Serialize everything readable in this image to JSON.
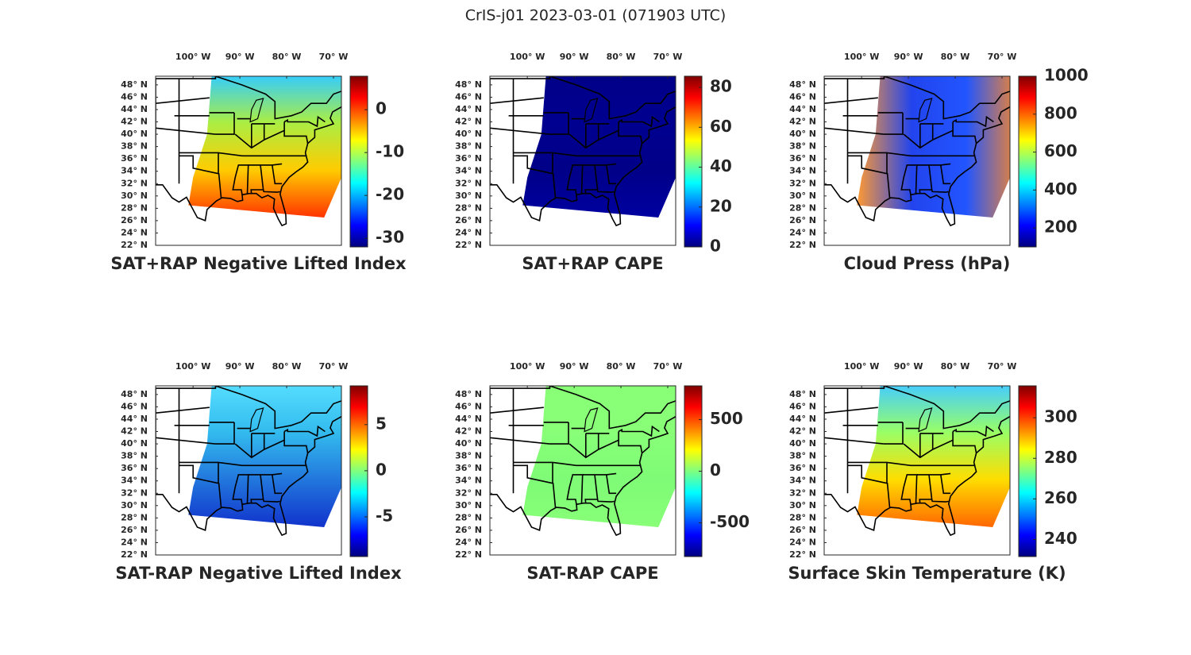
{
  "title": "CrIS-j01 2023-03-01 (071903 UTC)",
  "panels": [
    {
      "title": "SAT+RAP Negative Lifted Index",
      "xlim": [
        -108,
        -68.3
      ],
      "ylim": [
        22,
        49.4
      ],
      "lon_ticks": [
        {
          "value": -100,
          "label": "100° W"
        },
        {
          "value": -90,
          "label": "90° W"
        },
        {
          "value": -80,
          "label": "80° W"
        },
        {
          "value": -70,
          "label": "70° W"
        }
      ],
      "lat_ticks": [
        {
          "value": 22,
          "label": "22° N"
        },
        {
          "value": 24,
          "label": "24° N"
        },
        {
          "value": 26,
          "label": "26° N"
        },
        {
          "value": 28,
          "label": "28° N"
        },
        {
          "value": 30,
          "label": "30° N"
        },
        {
          "value": 32,
          "label": "32° N"
        },
        {
          "value": 34,
          "label": "34° N"
        },
        {
          "value": 36,
          "label": "36° N"
        },
        {
          "value": 38,
          "label": "38° N"
        },
        {
          "value": 40,
          "label": "40° N"
        },
        {
          "value": 42,
          "label": "42° N"
        },
        {
          "value": 44,
          "label": "44° N"
        },
        {
          "value": 46,
          "label": "46° N"
        },
        {
          "value": 48,
          "label": "48° N"
        }
      ],
      "colorbar": {
        "lim": [
          -32,
          7.8
        ],
        "ticks": [
          -30,
          -20,
          -10,
          0
        ]
      }
    },
    {
      "title": "SAT+RAP CAPE",
      "xlim": [
        -108,
        -68.3
      ],
      "ylim": [
        22,
        49.4
      ],
      "lon_ticks": [
        {
          "value": -100,
          "label": "100° W"
        },
        {
          "value": -90,
          "label": "90° W"
        },
        {
          "value": -80,
          "label": "80° W"
        },
        {
          "value": -70,
          "label": "70° W"
        }
      ],
      "lat_ticks": [
        {
          "value": 22,
          "label": "22° N"
        },
        {
          "value": 24,
          "label": "24° N"
        },
        {
          "value": 26,
          "label": "26° N"
        },
        {
          "value": 28,
          "label": "28° N"
        },
        {
          "value": 30,
          "label": "30° N"
        },
        {
          "value": 32,
          "label": "32° N"
        },
        {
          "value": 34,
          "label": "34° N"
        },
        {
          "value": 36,
          "label": "36° N"
        },
        {
          "value": 38,
          "label": "38° N"
        },
        {
          "value": 40,
          "label": "40° N"
        },
        {
          "value": 42,
          "label": "42° N"
        },
        {
          "value": 44,
          "label": "44° N"
        },
        {
          "value": 46,
          "label": "46° N"
        },
        {
          "value": 48,
          "label": "48° N"
        }
      ],
      "colorbar": {
        "lim": [
          0,
          85.6
        ],
        "ticks": [
          0,
          20,
          40,
          60,
          80
        ]
      }
    },
    {
      "title": "Cloud Press (hPa)",
      "xlim": [
        -108,
        -68.3
      ],
      "ylim": [
        22,
        49.4
      ],
      "lon_ticks": [
        {
          "value": -100,
          "label": "100° W"
        },
        {
          "value": -90,
          "label": "90° W"
        },
        {
          "value": -80,
          "label": "80° W"
        },
        {
          "value": -70,
          "label": "70° W"
        }
      ],
      "lat_ticks": [
        {
          "value": 22,
          "label": "22° N"
        },
        {
          "value": 24,
          "label": "24° N"
        },
        {
          "value": 26,
          "label": "26° N"
        },
        {
          "value": 28,
          "label": "28° N"
        },
        {
          "value": 30,
          "label": "30° N"
        },
        {
          "value": 32,
          "label": "32° N"
        },
        {
          "value": 34,
          "label": "34° N"
        },
        {
          "value": 36,
          "label": "36° N"
        },
        {
          "value": 38,
          "label": "38° N"
        },
        {
          "value": 40,
          "label": "40° N"
        },
        {
          "value": 42,
          "label": "42° N"
        },
        {
          "value": 44,
          "label": "44° N"
        },
        {
          "value": 46,
          "label": "46° N"
        },
        {
          "value": 48,
          "label": "48° N"
        }
      ],
      "colorbar": {
        "lim": [
          100,
          1000
        ],
        "ticks": [
          200,
          400,
          600,
          800,
          1000
        ]
      }
    },
    {
      "title": "SAT-RAP Negative Lifted Index",
      "xlim": [
        -108,
        -68.3
      ],
      "ylim": [
        22,
        49.4
      ],
      "lon_ticks": [
        {
          "value": -100,
          "label": "100° W"
        },
        {
          "value": -90,
          "label": "90° W"
        },
        {
          "value": -80,
          "label": "80° W"
        },
        {
          "value": -70,
          "label": "70° W"
        }
      ],
      "lat_ticks": [
        {
          "value": 22,
          "label": "22° N"
        },
        {
          "value": 24,
          "label": "24° N"
        },
        {
          "value": 26,
          "label": "26° N"
        },
        {
          "value": 28,
          "label": "28° N"
        },
        {
          "value": 30,
          "label": "30° N"
        },
        {
          "value": 32,
          "label": "32° N"
        },
        {
          "value": 34,
          "label": "34° N"
        },
        {
          "value": 36,
          "label": "36° N"
        },
        {
          "value": 38,
          "label": "38° N"
        },
        {
          "value": 40,
          "label": "40° N"
        },
        {
          "value": 42,
          "label": "42° N"
        },
        {
          "value": 44,
          "label": "44° N"
        },
        {
          "value": 46,
          "label": "46° N"
        },
        {
          "value": 48,
          "label": "48° N"
        }
      ],
      "colorbar": {
        "lim": [
          -9.3,
          9.2
        ],
        "ticks": [
          -5,
          0,
          5
        ]
      }
    },
    {
      "title": "SAT-RAP CAPE",
      "xlim": [
        -108,
        -68.3
      ],
      "ylim": [
        22,
        49.4
      ],
      "lon_ticks": [
        {
          "value": -100,
          "label": "100° W"
        },
        {
          "value": -90,
          "label": "90° W"
        },
        {
          "value": -80,
          "label": "80° W"
        },
        {
          "value": -70,
          "label": "70° W"
        }
      ],
      "lat_ticks": [
        {
          "value": 22,
          "label": "22° N"
        },
        {
          "value": 24,
          "label": "24° N"
        },
        {
          "value": 26,
          "label": "26° N"
        },
        {
          "value": 28,
          "label": "28° N"
        },
        {
          "value": 30,
          "label": "30° N"
        },
        {
          "value": 32,
          "label": "32° N"
        },
        {
          "value": 34,
          "label": "34° N"
        },
        {
          "value": 36,
          "label": "36° N"
        },
        {
          "value": 38,
          "label": "38° N"
        },
        {
          "value": 40,
          "label": "40° N"
        },
        {
          "value": 42,
          "label": "42° N"
        },
        {
          "value": 44,
          "label": "44° N"
        },
        {
          "value": 46,
          "label": "46° N"
        },
        {
          "value": 48,
          "label": "48° N"
        }
      ],
      "colorbar": {
        "lim": [
          -826,
          826
        ],
        "ticks": [
          -500,
          0,
          500
        ]
      }
    },
    {
      "title": "Surface Skin Temperature (K)",
      "xlim": [
        -108,
        -68.3
      ],
      "ylim": [
        22,
        49.4
      ],
      "lon_ticks": [
        {
          "value": -100,
          "label": "100° W"
        },
        {
          "value": -90,
          "label": "90° W"
        },
        {
          "value": -80,
          "label": "80° W"
        },
        {
          "value": -70,
          "label": "70° W"
        }
      ],
      "lat_ticks": [
        {
          "value": 22,
          "label": "22° N"
        },
        {
          "value": 24,
          "label": "24° N"
        },
        {
          "value": 26,
          "label": "26° N"
        },
        {
          "value": 28,
          "label": "28° N"
        },
        {
          "value": 30,
          "label": "30° N"
        },
        {
          "value": 32,
          "label": "32° N"
        },
        {
          "value": 34,
          "label": "34° N"
        },
        {
          "value": 36,
          "label": "36° N"
        },
        {
          "value": 38,
          "label": "38° N"
        },
        {
          "value": 40,
          "label": "40° N"
        },
        {
          "value": 42,
          "label": "42° N"
        },
        {
          "value": 44,
          "label": "44° N"
        },
        {
          "value": 46,
          "label": "46° N"
        },
        {
          "value": 48,
          "label": "48° N"
        }
      ],
      "colorbar": {
        "lim": [
          231.6,
          315.7
        ],
        "ticks": [
          240,
          260,
          280,
          300
        ]
      }
    }
  ]
}
